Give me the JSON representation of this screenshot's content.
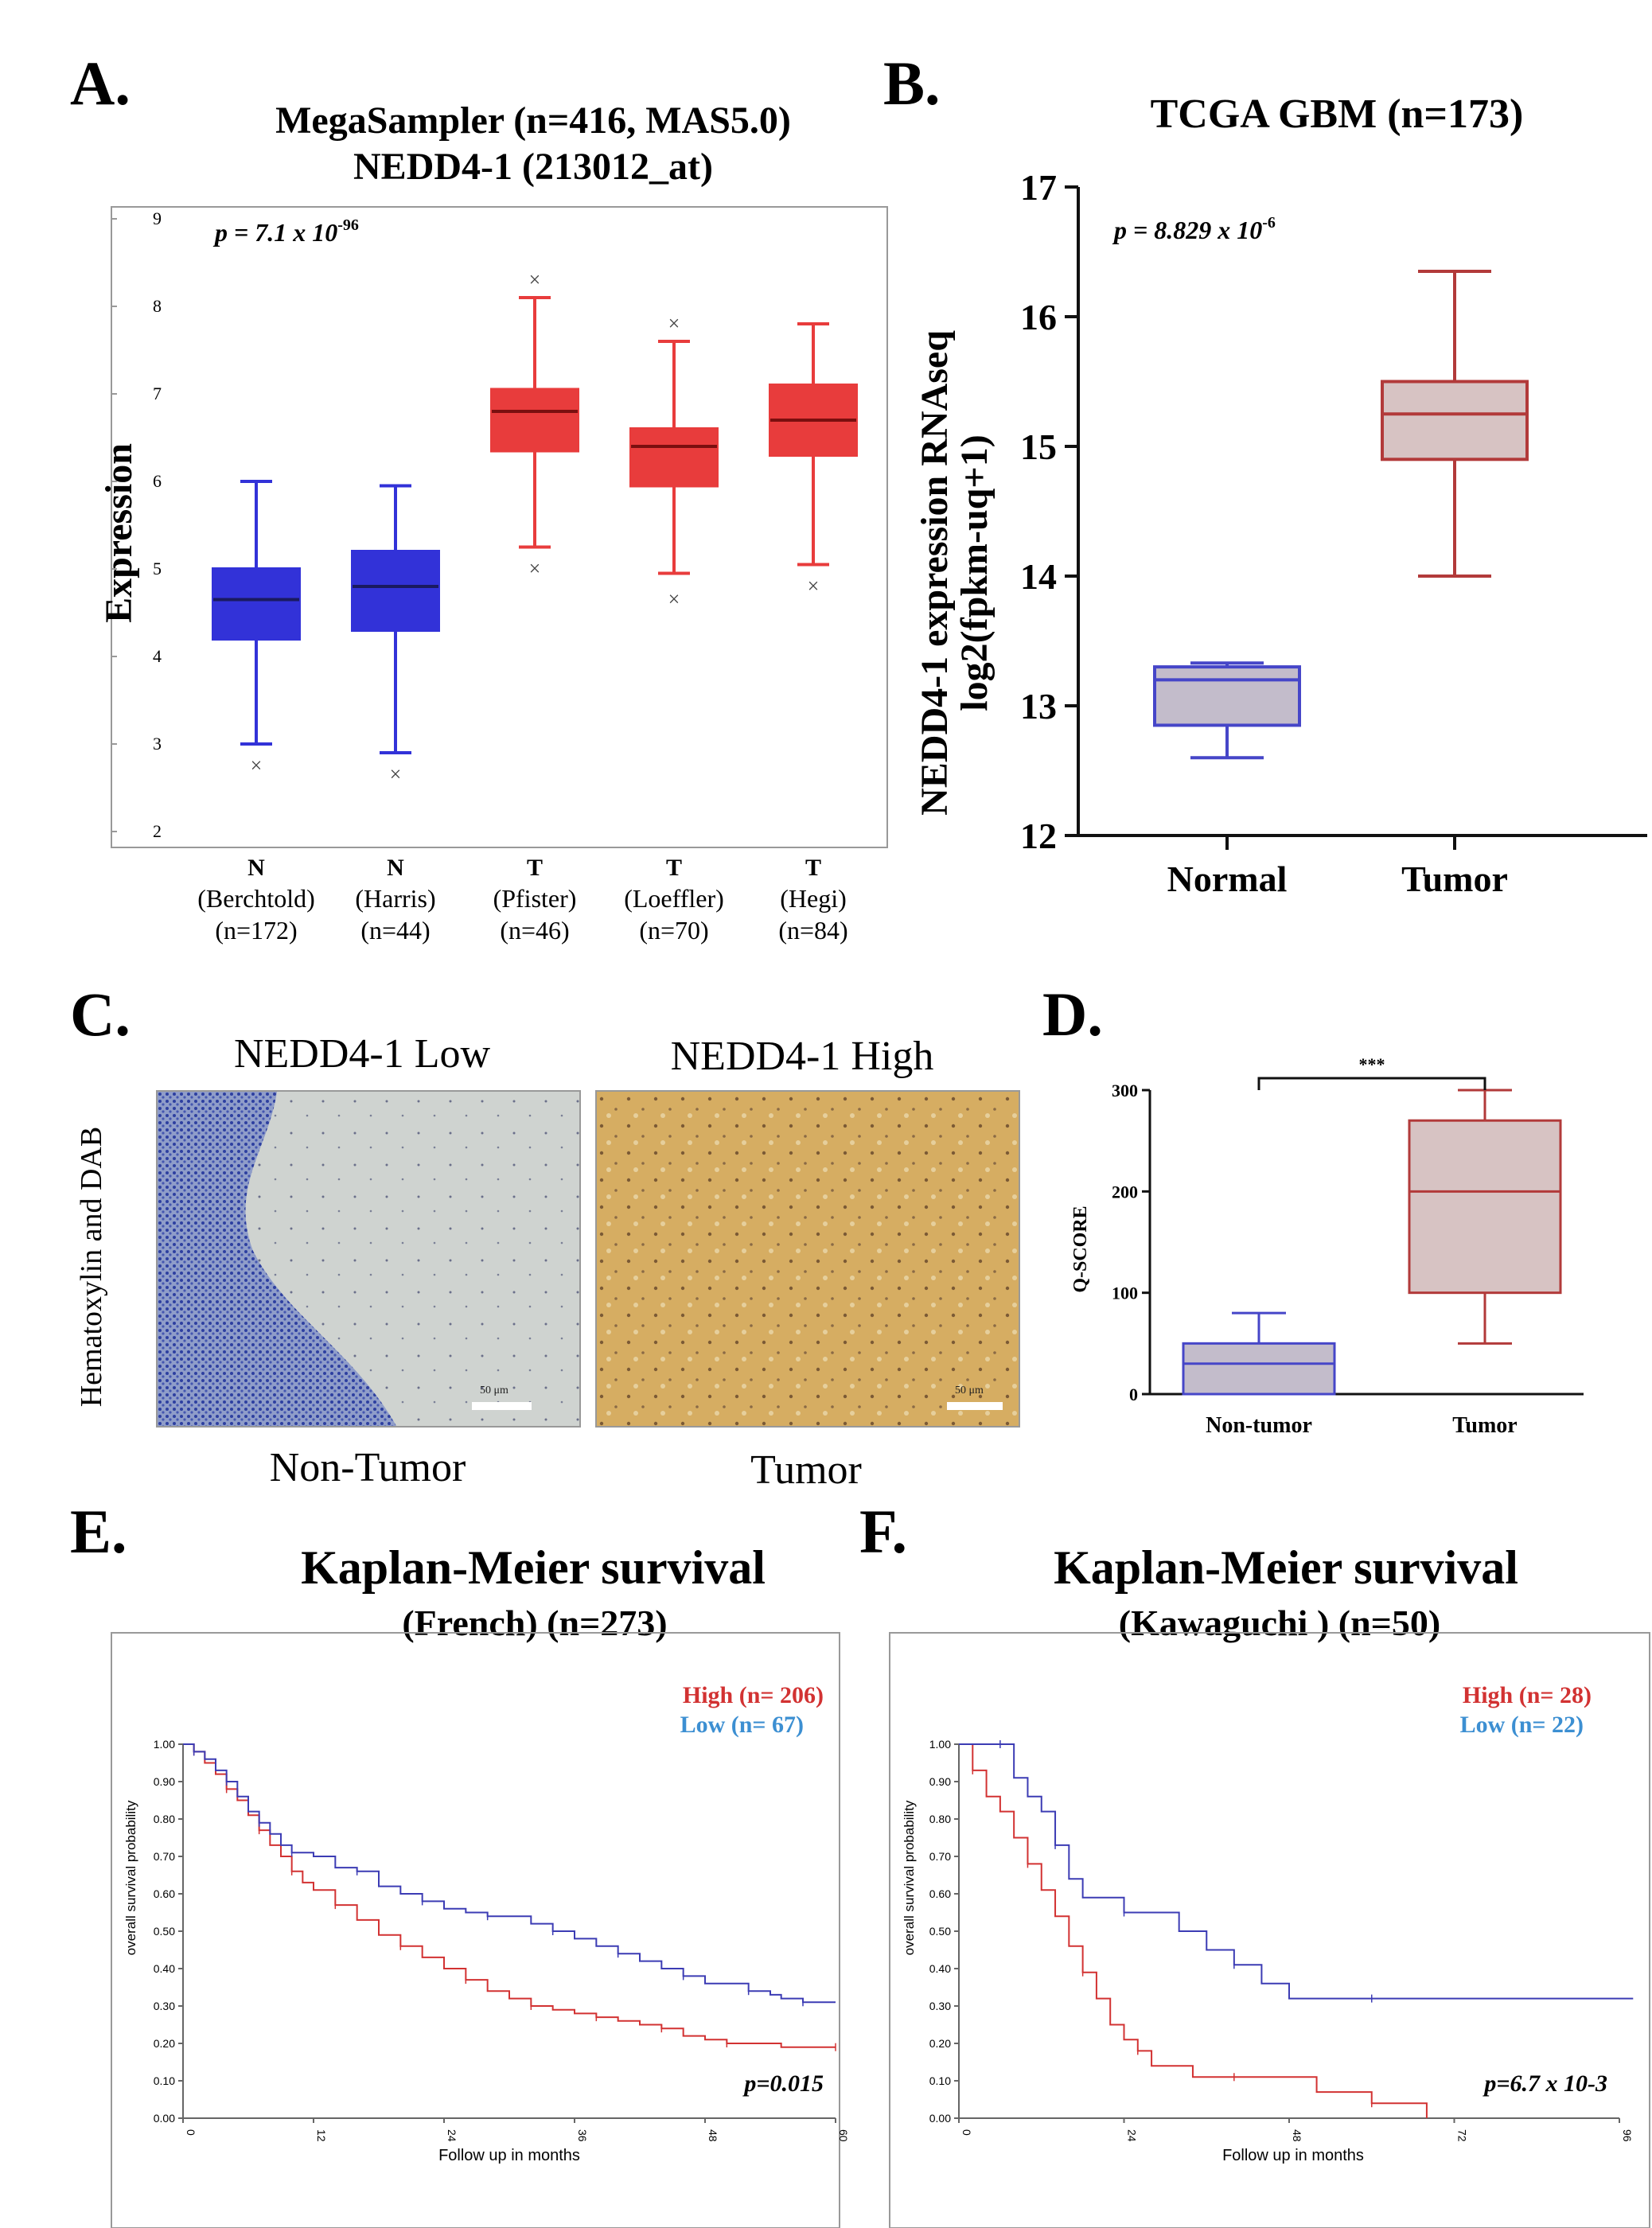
{
  "panels": {
    "a": {
      "letter": "A.",
      "title_line1": "MegaSampler (n=416, MAS5.0)",
      "title_line2": "NEDD4-1 (213012_at)",
      "ylabel": "Expression",
      "pvalue_base": "p = 7.1 x 10",
      "pvalue_exp": "-96",
      "yticks": [
        "2",
        "3",
        "4",
        "5",
        "6",
        "7",
        "8",
        "9"
      ],
      "groups": [
        {
          "l1": "N",
          "l2": "(Berchtold)",
          "l3": "(n=172)"
        },
        {
          "l1": "N",
          "l2": "(Harris)",
          "l3": "(n=44)"
        },
        {
          "l1": "T",
          "l2": "(Pfister)",
          "l3": "(n=46)"
        },
        {
          "l1": "T",
          "l2": "(Loeffler)",
          "l3": "(n=70)"
        },
        {
          "l1": "T",
          "l2": "(Hegi)",
          "l3": "(n=84)"
        }
      ],
      "outlier_marker": "×"
    },
    "b": {
      "letter": "B.",
      "title": "TCGA GBM (n=173)",
      "ylabel_line1": "NEDD4-1 expression RNAseq",
      "ylabel_line2": "log2(fpkm-uq+1)",
      "pvalue_base": "p = 8.829 x 10",
      "pvalue_exp": "-6",
      "yticks": [
        "12",
        "13",
        "14",
        "15",
        "16",
        "17"
      ],
      "categories": [
        "Normal",
        "Tumor"
      ]
    },
    "c": {
      "letter": "C.",
      "ylabel": "Hematoxylin  and DAB",
      "low_title": "NEDD4-1 Low",
      "high_title": "NEDD4-1 High",
      "low_caption": "Non-Tumor",
      "high_caption": "Tumor",
      "scalebar_low": "50 μm",
      "scalebar_high": "50 μm"
    },
    "d": {
      "letter": "D.",
      "ylabel": "Q-SCORE",
      "significance": "***",
      "yticks": [
        "0",
        "100",
        "200",
        "300"
      ],
      "categories": [
        "Non-tumor",
        "Tumor"
      ]
    },
    "e": {
      "letter": "E.",
      "title_line1": "Kaplan-Meier survival",
      "title_line2": "(French) (n=273)",
      "legend_high": "High (n= 206)",
      "legend_low": "Low (n= 67)",
      "pvalue": "p=0.015",
      "ylabel": "overall survival probability",
      "xlabel": "Follow up in months",
      "xticks": [
        "0",
        "12",
        "24",
        "36",
        "48",
        "60"
      ],
      "yticks": [
        "0.00",
        "0.10",
        "0.20",
        "0.30",
        "0.40",
        "0.50",
        "0.60",
        "0.70",
        "0.80",
        "0.90",
        "1.00"
      ]
    },
    "f": {
      "letter": "F.",
      "title_line1": "Kaplan-Meier survival",
      "title_line2": "(Kawaguchi ) (n=50)",
      "legend_high": "High (n= 28)",
      "legend_low": "Low (n= 22)",
      "pvalue": "p=6.7 x 10-3",
      "ylabel": "overall survival probability",
      "xlabel": "Follow up in months",
      "xticks": [
        "0",
        "24",
        "48",
        "72",
        "96"
      ],
      "yticks": [
        "0.00",
        "0.10",
        "0.20",
        "0.30",
        "0.40",
        "0.50",
        "0.60",
        "0.70",
        "0.80",
        "0.90",
        "1.00"
      ]
    }
  },
  "chart_data": [
    {
      "type": "box",
      "panel": "A",
      "ylim": [
        2,
        9
      ],
      "boxes": [
        {
          "category": "N (Berchtold)",
          "whisker_low": 3.0,
          "q1": 4.2,
          "median": 4.65,
          "q3": 5.0,
          "whisker_high": 6.0,
          "outliers": [
            2.75
          ],
          "color": "#3232d8"
        },
        {
          "category": "N (Harris)",
          "whisker_low": 2.9,
          "q1": 4.3,
          "median": 4.8,
          "q3": 5.2,
          "whisker_high": 5.95,
          "outliers": [
            2.65
          ],
          "color": "#3232d8"
        },
        {
          "category": "T (Pfister)",
          "whisker_low": 5.25,
          "q1": 6.35,
          "median": 6.8,
          "q3": 7.05,
          "whisker_high": 8.1,
          "outliers": [
            5.0,
            8.3
          ],
          "color": "#e83c3c"
        },
        {
          "category": "T (Loeffler)",
          "whisker_low": 4.95,
          "q1": 5.95,
          "median": 6.4,
          "q3": 6.6,
          "whisker_high": 7.6,
          "outliers": [
            4.65,
            7.8
          ],
          "color": "#e83c3c"
        },
        {
          "category": "T (Hegi)",
          "whisker_low": 5.05,
          "q1": 6.3,
          "median": 6.7,
          "q3": 7.1,
          "whisker_high": 7.8,
          "outliers": [
            4.8
          ],
          "color": "#e83c3c"
        }
      ]
    },
    {
      "type": "box",
      "panel": "B",
      "ylim": [
        12,
        17
      ],
      "boxes": [
        {
          "category": "Normal",
          "whisker_low": 12.6,
          "q1": 12.85,
          "median": 13.2,
          "q3": 13.3,
          "whisker_high": 13.33,
          "outliers": [],
          "color": "#4646c8",
          "fill": "#c3bccb"
        },
        {
          "category": "Tumor",
          "whisker_low": 14.0,
          "q1": 14.9,
          "median": 15.25,
          "q3": 15.5,
          "whisker_high": 16.35,
          "outliers": [],
          "color": "#b23a3a",
          "fill": "#d7c3c3"
        }
      ]
    },
    {
      "type": "box",
      "panel": "D",
      "ylim": [
        0,
        300
      ],
      "boxes": [
        {
          "category": "Non-tumor",
          "whisker_low": 0,
          "q1": 0,
          "median": 30,
          "q3": 50,
          "whisker_high": 80,
          "outliers": [],
          "color": "#4646c8",
          "fill": "#c3bccb"
        },
        {
          "category": "Tumor",
          "whisker_low": 50,
          "q1": 100,
          "median": 200,
          "q3": 270,
          "whisker_high": 300,
          "outliers": [],
          "color": "#b23a3a",
          "fill": "#d7c3c3"
        }
      ]
    },
    {
      "type": "line",
      "panel": "E",
      "xlim": [
        0,
        60
      ],
      "ylim": [
        0,
        1
      ],
      "series": [
        {
          "name": "High (n= 206)",
          "color": "#d23232",
          "x": [
            0,
            1,
            2,
            3,
            4,
            5,
            6,
            7,
            8,
            9,
            10,
            11,
            12,
            14,
            16,
            18,
            20,
            22,
            24,
            26,
            28,
            30,
            32,
            34,
            36,
            38,
            40,
            42,
            44,
            46,
            48,
            50,
            52,
            55,
            60
          ],
          "y": [
            1.0,
            0.98,
            0.95,
            0.92,
            0.88,
            0.85,
            0.81,
            0.77,
            0.73,
            0.7,
            0.66,
            0.63,
            0.61,
            0.57,
            0.53,
            0.49,
            0.46,
            0.43,
            0.4,
            0.37,
            0.34,
            0.32,
            0.3,
            0.29,
            0.28,
            0.27,
            0.26,
            0.25,
            0.24,
            0.22,
            0.21,
            0.2,
            0.2,
            0.19,
            0.19
          ]
        },
        {
          "name": "Low (n= 67)",
          "color": "#3c3cb4",
          "x": [
            0,
            1,
            2,
            3,
            4,
            5,
            6,
            7,
            8,
            9,
            10,
            12,
            14,
            16,
            18,
            20,
            22,
            24,
            26,
            28,
            30,
            32,
            34,
            36,
            38,
            40,
            42,
            44,
            46,
            48,
            50,
            52,
            54,
            55,
            57,
            60
          ],
          "y": [
            1.0,
            0.98,
            0.96,
            0.93,
            0.9,
            0.86,
            0.82,
            0.79,
            0.76,
            0.73,
            0.71,
            0.7,
            0.67,
            0.66,
            0.62,
            0.6,
            0.58,
            0.56,
            0.55,
            0.54,
            0.54,
            0.52,
            0.5,
            0.48,
            0.46,
            0.44,
            0.42,
            0.4,
            0.38,
            0.36,
            0.36,
            0.34,
            0.33,
            0.32,
            0.31,
            0.31
          ]
        }
      ]
    },
    {
      "type": "line",
      "panel": "F",
      "xlim": [
        0,
        96
      ],
      "ylim": [
        0,
        1
      ],
      "series": [
        {
          "name": "High (n= 28)",
          "color": "#d23232",
          "x": [
            0,
            2,
            4,
            6,
            8,
            10,
            12,
            14,
            16,
            18,
            20,
            22,
            24,
            26,
            28,
            30,
            34,
            40,
            46,
            52,
            56,
            60,
            64,
            68
          ],
          "y": [
            1.0,
            0.93,
            0.86,
            0.82,
            0.75,
            0.68,
            0.61,
            0.54,
            0.46,
            0.39,
            0.32,
            0.25,
            0.21,
            0.18,
            0.14,
            0.14,
            0.11,
            0.11,
            0.11,
            0.07,
            0.07,
            0.04,
            0.04,
            0.0
          ]
        },
        {
          "name": "Low (n= 22)",
          "color": "#3c3cb4",
          "x": [
            0,
            6,
            8,
            10,
            12,
            14,
            16,
            18,
            20,
            24,
            28,
            32,
            36,
            40,
            44,
            46,
            48,
            60,
            72,
            84,
            98
          ],
          "y": [
            1.0,
            1.0,
            0.91,
            0.86,
            0.82,
            0.73,
            0.64,
            0.59,
            0.59,
            0.55,
            0.55,
            0.5,
            0.45,
            0.41,
            0.36,
            0.36,
            0.32,
            0.32,
            0.32,
            0.32,
            0.32
          ]
        }
      ]
    }
  ]
}
